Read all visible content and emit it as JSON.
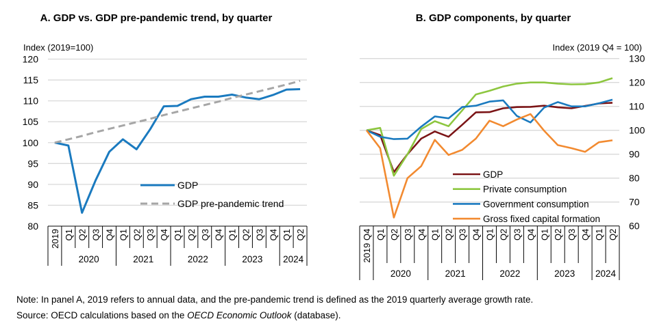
{
  "chart_data": [
    {
      "type": "line",
      "title": "A. GDP vs. GDP pre-pandemic trend, by quarter",
      "ylabel": "Index (2019=100)",
      "ylim": [
        80,
        120
      ],
      "yticks": [
        80,
        85,
        90,
        95,
        100,
        105,
        110,
        115,
        120
      ],
      "grid": true,
      "legend_position": "bottom-right",
      "categories": [
        "2019",
        "Q1",
        "Q2",
        "Q3",
        "Q4",
        "Q1",
        "Q2",
        "Q3",
        "Q4",
        "Q1",
        "Q2",
        "Q3",
        "Q4",
        "Q1",
        "Q2",
        "Q3",
        "Q4",
        "Q1",
        "Q2"
      ],
      "year_groups": [
        {
          "label": "2020",
          "start": 1,
          "count": 4
        },
        {
          "label": "2021",
          "start": 5,
          "count": 4
        },
        {
          "label": "2022",
          "start": 9,
          "count": 4
        },
        {
          "label": "2023",
          "start": 13,
          "count": 4
        },
        {
          "label": "2024",
          "start": 17,
          "count": 2
        }
      ],
      "series": [
        {
          "name": "GDP",
          "color": "#1a7abf",
          "dash": false,
          "values": [
            100,
            99.3,
            83.2,
            91.0,
            97.8,
            100.8,
            98.4,
            103.2,
            108.7,
            108.8,
            110.4,
            111.0,
            111.0,
            111.5,
            110.8,
            110.4,
            111.4,
            112.7,
            112.8
          ]
        },
        {
          "name": "GDP pre-pandemic trend",
          "color": "#a6a6a6",
          "dash": true,
          "values": [
            100,
            100.8,
            101.6,
            102.5,
            103.3,
            104.1,
            104.9,
            105.7,
            106.6,
            107.4,
            108.2,
            109.0,
            109.8,
            110.7,
            111.5,
            112.3,
            113.1,
            113.9,
            114.8
          ]
        }
      ]
    },
    {
      "type": "line",
      "title": "B. GDP components, by quarter",
      "ylabel": "Index (2019 Q4 = 100)",
      "ylim": [
        60,
        130
      ],
      "yticks": [
        60,
        70,
        80,
        90,
        100,
        110,
        120,
        130
      ],
      "grid": true,
      "legend_position": "bottom-center",
      "categories": [
        "2019 Q4",
        "Q1",
        "Q2",
        "Q3",
        "Q4",
        "Q1",
        "Q2",
        "Q3",
        "Q4",
        "Q1",
        "Q2",
        "Q3",
        "Q4",
        "Q1",
        "Q2",
        "Q3",
        "Q4",
        "Q1",
        "Q2"
      ],
      "year_groups": [
        {
          "label": "2020",
          "start": 1,
          "count": 4
        },
        {
          "label": "2021",
          "start": 5,
          "count": 4
        },
        {
          "label": "2022",
          "start": 9,
          "count": 4
        },
        {
          "label": "2023",
          "start": 13,
          "count": 4
        },
        {
          "label": "2024",
          "start": 17,
          "count": 2
        }
      ],
      "series": [
        {
          "name": "GDP",
          "color": "#7b1416",
          "values": [
            100,
            98.0,
            82.5,
            90.0,
            96.5,
            99.5,
            97.3,
            102.3,
            107.5,
            107.6,
            109.2,
            109.7,
            109.8,
            110.3,
            109.6,
            109.2,
            110.2,
            111.2,
            111.5
          ]
        },
        {
          "name": "Private consumption",
          "color": "#8dc63f",
          "values": [
            100,
            101.0,
            81.0,
            90.0,
            100.5,
            103.8,
            101.7,
            108.3,
            115.0,
            116.5,
            118.3,
            119.5,
            120.0,
            120.0,
            119.5,
            119.2,
            119.3,
            120.0,
            121.8
          ]
        },
        {
          "name": "Government consumption",
          "color": "#1a7abf",
          "values": [
            100,
            97.3,
            96.3,
            96.5,
            101.5,
            105.8,
            105.0,
            109.7,
            110.3,
            112.0,
            112.5,
            106.0,
            103.3,
            109.5,
            111.8,
            110.0,
            110.0,
            111.3,
            112.8
          ]
        },
        {
          "name": "Gross fixed capital formation",
          "color": "#f28a30",
          "values": [
            100,
            92.5,
            63.5,
            80.0,
            85.0,
            96.0,
            89.7,
            91.8,
            96.5,
            104.0,
            101.7,
            104.5,
            106.8,
            99.8,
            93.8,
            92.5,
            91.0,
            95.0,
            95.8
          ]
        }
      ]
    }
  ],
  "notes": {
    "note": "Note: In panel A, 2019 refers to annual data, and the pre-pandemic trend is defined as the 2019 quarterly average growth rate.",
    "source_prefix": "Source: OECD calculations based on the ",
    "source_italic": "OECD Economic Outlook",
    "source_suffix": " (database)."
  }
}
